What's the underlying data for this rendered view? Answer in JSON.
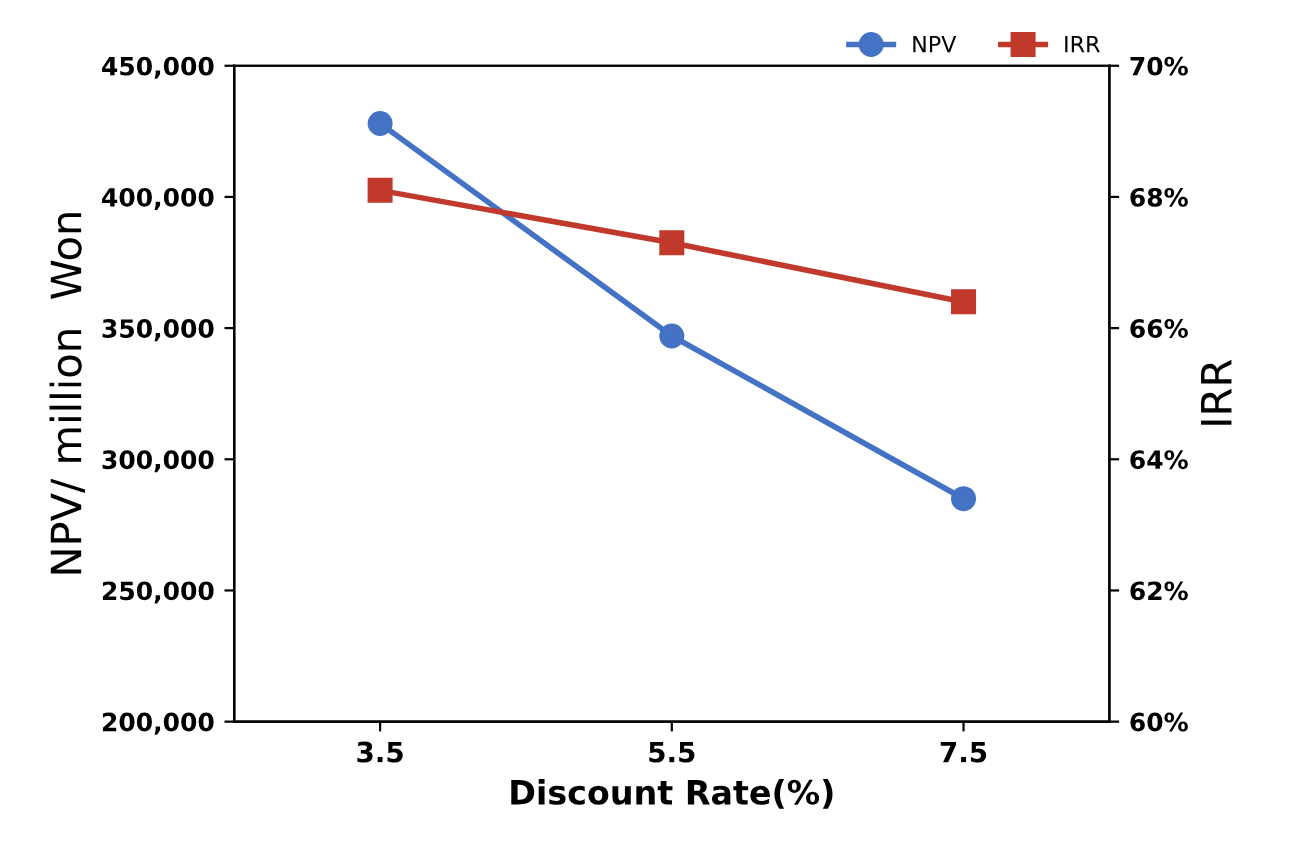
{
  "chart_data": {
    "type": "line",
    "xlabel": "Discount Rate(%)",
    "ylabel": "NPV/ million  Won",
    "y2label": "IRR",
    "categories": [
      "3.5",
      "5.5",
      "7.5"
    ],
    "series": [
      {
        "name": "NPV",
        "color": "#4472c4",
        "values": [
          428000,
          347000,
          285000
        ],
        "marker": "circle"
      },
      {
        "name": "IRR",
        "color": "#c0392b",
        "values": [
          68.1,
          67.3,
          66.4
        ],
        "axis": "y2",
        "marker": "square"
      }
    ],
    "ylim": [
      200000,
      450000
    ],
    "yticks": [
      {
        "value": 200000,
        "label": "200,000"
      },
      {
        "value": 250000,
        "label": "250,000"
      },
      {
        "value": 300000,
        "label": "300,000"
      },
      {
        "value": 350000,
        "label": "350,000"
      },
      {
        "value": 400000,
        "label": "400,000"
      },
      {
        "value": 450000,
        "label": "450,000"
      }
    ],
    "y2lim": [
      60,
      70
    ],
    "y2ticks": [
      {
        "value": 60,
        "label": "60%"
      },
      {
        "value": 62,
        "label": "62%"
      },
      {
        "value": 64,
        "label": "64%"
      },
      {
        "value": 66,
        "label": "66%"
      },
      {
        "value": 68,
        "label": "68%"
      },
      {
        "value": 70,
        "label": "70%"
      }
    ],
    "grid": false,
    "legend": "top right",
    "line_style": "solid"
  }
}
